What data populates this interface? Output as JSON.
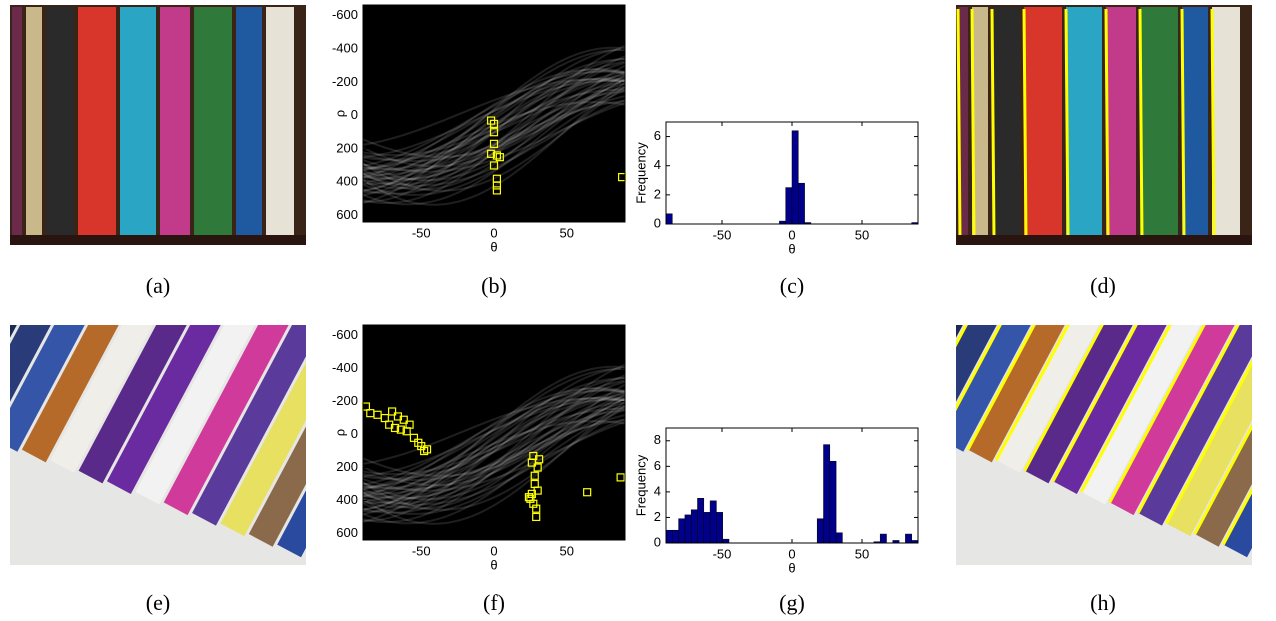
{
  "captions": [
    "(a)",
    "(b)",
    "(c)",
    "(d)",
    "(e)",
    "(f)",
    "(g)",
    "(h)"
  ],
  "chart_data": [
    {
      "type": "scatter",
      "x_label": "θ",
      "y_label": "ρ",
      "color": "#ffff00",
      "x": [
        -2,
        0,
        0,
        0,
        -2,
        2,
        4,
        0,
        2,
        2,
        2,
        88
      ],
      "y": [
        30,
        50,
        100,
        170,
        230,
        240,
        250,
        300,
        380,
        420,
        450,
        370
      ],
      "xlim": [
        -90,
        90
      ],
      "xticks": [
        -50,
        0,
        50
      ],
      "ylim": [
        -665,
        640
      ],
      "yticks": [
        -600,
        -400,
        -200,
        0,
        200,
        400,
        600
      ],
      "y_inverted": true
    },
    {
      "type": "histogram",
      "x_label": "θ",
      "y_label": "Frequency",
      "color": "#00008b",
      "bins": [
        -90,
        -85.5,
        -81,
        -76.5,
        -72,
        -67.5,
        -63,
        -58.5,
        -54,
        -49.5,
        -45,
        -40.5,
        -36,
        -31.5,
        -27,
        -22.5,
        -18,
        -13.5,
        -9,
        -4.5,
        0,
        4.5,
        9,
        13.5,
        18,
        22.5,
        27,
        31.5,
        36,
        40.5,
        45,
        49.5,
        54,
        58.5,
        63,
        67.5,
        72,
        76.5,
        81,
        85.5,
        90
      ],
      "counts": [
        0.7,
        0,
        0,
        0,
        0,
        0,
        0,
        0,
        0,
        0,
        0,
        0,
        0,
        0,
        0,
        0,
        0,
        0,
        0.2,
        2.5,
        6.4,
        2.8,
        0.1,
        0,
        0,
        0,
        0,
        0,
        0,
        0,
        0,
        0,
        0,
        0,
        0,
        0,
        0,
        0,
        0,
        0.1
      ],
      "xlim": [
        -90,
        90
      ],
      "xticks": [
        -50,
        0,
        50
      ],
      "ylim": [
        0,
        7
      ],
      "yticks": [
        0,
        2,
        4,
        6
      ]
    },
    {
      "type": "scatter",
      "x_label": "θ",
      "y_label": "ρ",
      "color": "#ffff00",
      "x": [
        -88,
        -85,
        -80,
        -75,
        -72,
        -70,
        -68,
        -66,
        -64,
        -62,
        -60,
        -58,
        -55,
        -52,
        -50,
        -48,
        -46,
        24,
        25,
        26,
        27,
        28,
        28,
        29,
        29,
        30,
        30,
        31,
        27,
        26,
        64,
        87
      ],
      "y": [
        -170,
        -130,
        -120,
        -100,
        -60,
        -140,
        -40,
        -110,
        -30,
        -90,
        -20,
        -60,
        20,
        50,
        70,
        100,
        90,
        380,
        390,
        170,
        130,
        250,
        300,
        450,
        500,
        340,
        200,
        150,
        420,
        360,
        350,
        260
      ],
      "xlim": [
        -90,
        90
      ],
      "xticks": [
        -50,
        0,
        50
      ],
      "ylim": [
        -665,
        640
      ],
      "yticks": [
        -600,
        -400,
        -200,
        0,
        200,
        400,
        600
      ],
      "y_inverted": true
    },
    {
      "type": "histogram",
      "x_label": "θ",
      "y_label": "Frequency",
      "color": "#00008b",
      "bins": [
        -90,
        -85.5,
        -81,
        -76.5,
        -72,
        -67.5,
        -63,
        -58.5,
        -54,
        -49.5,
        -45,
        -40.5,
        -36,
        -31.5,
        -27,
        -22.5,
        -18,
        -13.5,
        -9,
        -4.5,
        0,
        4.5,
        9,
        13.5,
        18,
        22.5,
        27,
        31.5,
        36,
        40.5,
        45,
        49.5,
        54,
        58.5,
        63,
        67.5,
        72,
        76.5,
        81,
        85.5,
        90
      ],
      "counts": [
        1,
        1,
        1.9,
        2.2,
        2.6,
        3.5,
        2.4,
        3.3,
        2.4,
        0.3,
        0,
        0,
        0,
        0,
        0,
        0,
        0,
        0,
        0,
        0,
        0,
        0,
        0,
        0,
        1.9,
        7.7,
        6.4,
        0.8,
        0,
        0,
        0,
        0,
        0,
        0.1,
        0.7,
        0,
        0.2,
        0,
        0.7,
        0.2
      ],
      "xlim": [
        -90,
        90
      ],
      "xticks": [
        -50,
        0,
        50
      ],
      "ylim": [
        0,
        9
      ],
      "yticks": [
        0,
        2,
        4,
        6,
        8
      ]
    }
  ]
}
